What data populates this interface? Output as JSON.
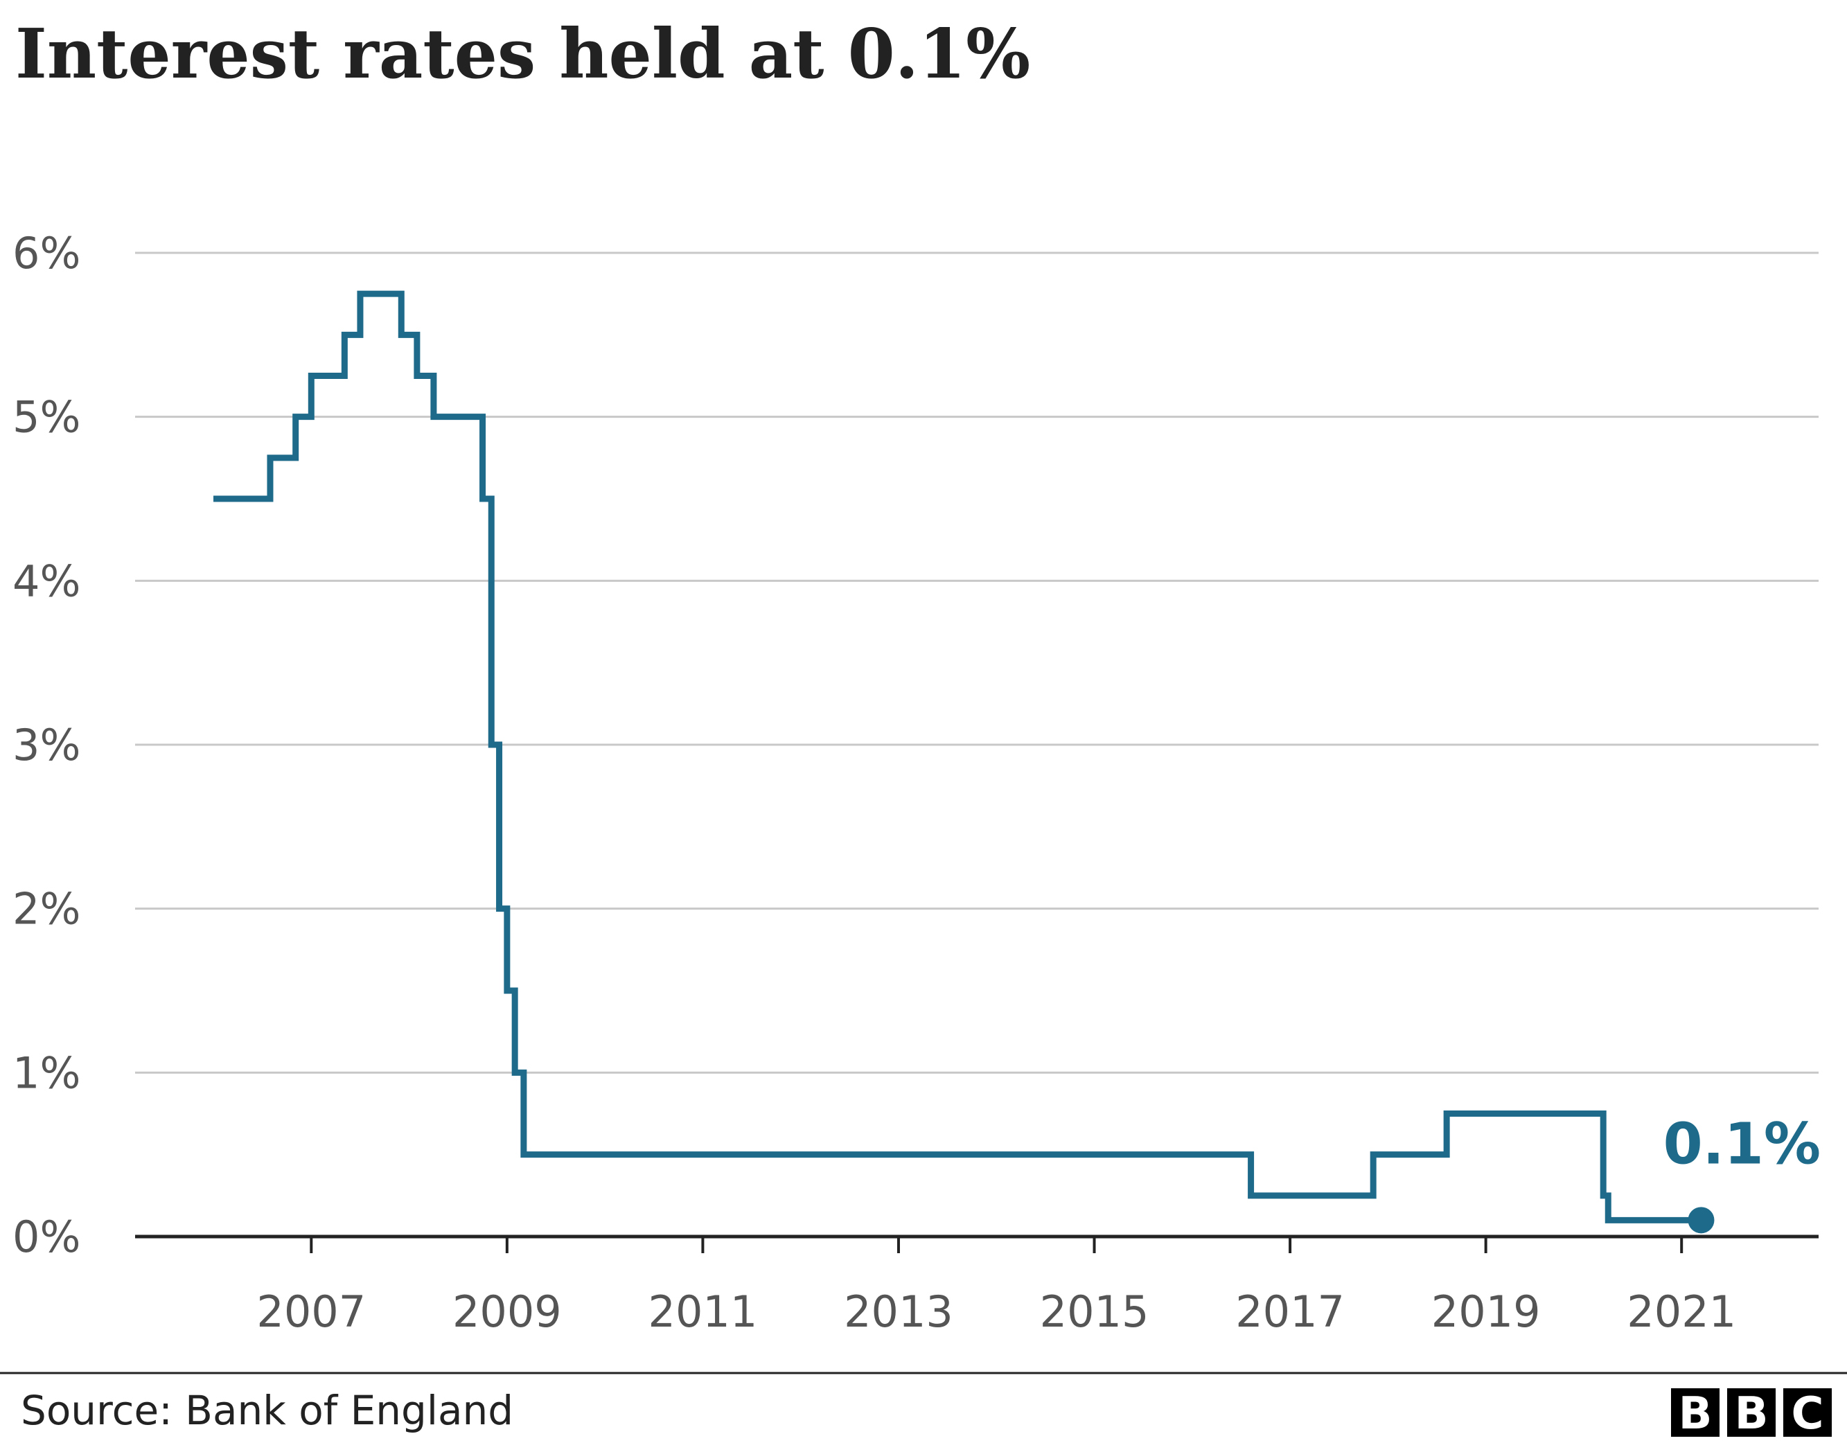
{
  "chart_data": {
    "type": "line",
    "title": "Interest rates held at 0.1%",
    "subtitle": "",
    "xlabel": "",
    "ylabel": "",
    "xlim": [
      2005.2,
      2022.4
    ],
    "ylim": [
      0,
      6
    ],
    "y_ticks": [
      0,
      1,
      2,
      3,
      4,
      5,
      6
    ],
    "y_tick_labels": [
      "0%",
      "1%",
      "2%",
      "3%",
      "4%",
      "5%",
      "6%"
    ],
    "x_ticks": [
      2007,
      2009,
      2011,
      2013,
      2015,
      2017,
      2019,
      2021
    ],
    "x_tick_labels": [
      "2007",
      "2009",
      "2011",
      "2013",
      "2015",
      "2017",
      "2019",
      "2021"
    ],
    "grid": true,
    "line_style": "step",
    "series": [
      {
        "color": "#1d6a8a",
        "x": [
          2006.0,
          2006.58,
          2006.84,
          2007.0,
          2007.34,
          2007.5,
          2007.92,
          2008.08,
          2008.25,
          2008.75,
          2008.84,
          2008.92,
          2009.0,
          2009.08,
          2009.17,
          2016.6,
          2017.85,
          2018.6,
          2020.2,
          2020.25,
          2021.2
        ],
        "y": [
          4.5,
          4.75,
          5.0,
          5.25,
          5.5,
          5.75,
          5.5,
          5.25,
          5.0,
          4.5,
          3.0,
          2.0,
          1.5,
          1.0,
          0.5,
          0.25,
          0.5,
          0.75,
          0.25,
          0.1,
          0.1
        ]
      }
    ],
    "annotations": [
      {
        "text": "0.1%",
        "x": 2021.2,
        "y": 0.1,
        "color": "#1d6a8a"
      }
    ]
  },
  "footer": {
    "source": "Source: Bank of England",
    "logo_letters": [
      "B",
      "B",
      "C"
    ]
  }
}
